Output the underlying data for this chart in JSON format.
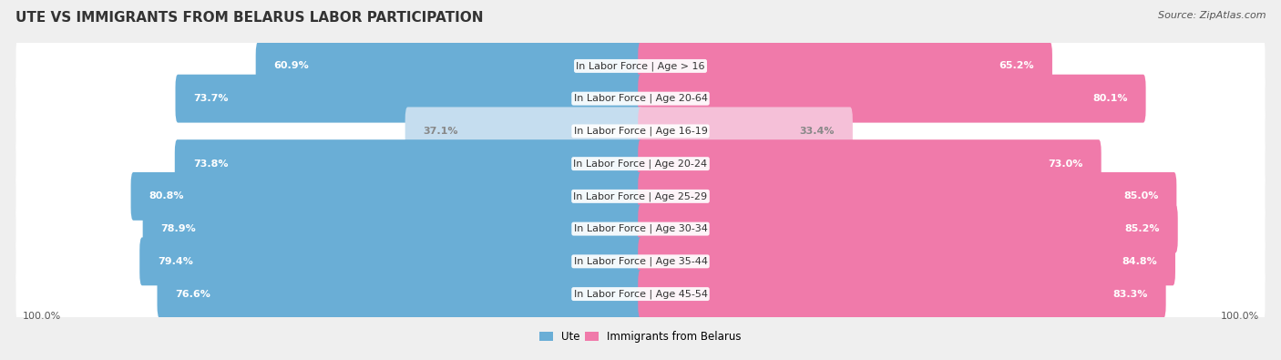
{
  "title": "Ute vs Immigrants from Belarus Labor Participation",
  "source": "Source: ZipAtlas.com",
  "categories": [
    "In Labor Force | Age > 16",
    "In Labor Force | Age 20-64",
    "In Labor Force | Age 16-19",
    "In Labor Force | Age 20-24",
    "In Labor Force | Age 25-29",
    "In Labor Force | Age 30-34",
    "In Labor Force | Age 35-44",
    "In Labor Force | Age 45-54"
  ],
  "ute_values": [
    60.9,
    73.7,
    37.1,
    73.8,
    80.8,
    78.9,
    79.4,
    76.6
  ],
  "immigrants_values": [
    65.2,
    80.1,
    33.4,
    73.0,
    85.0,
    85.2,
    84.8,
    83.3
  ],
  "ute_color_strong": "#6aaed6",
  "ute_color_light": "#c5ddef",
  "immigrants_color_strong": "#f07aaa",
  "immigrants_color_light": "#f5c0d8",
  "bar_height": 0.68,
  "max_value": 100.0,
  "background_color": "#efefef",
  "row_bg_color": "#fafafa",
  "title_fontsize": 11,
  "label_fontsize": 8,
  "value_fontsize": 8,
  "legend_fontsize": 8.5,
  "source_fontsize": 8
}
